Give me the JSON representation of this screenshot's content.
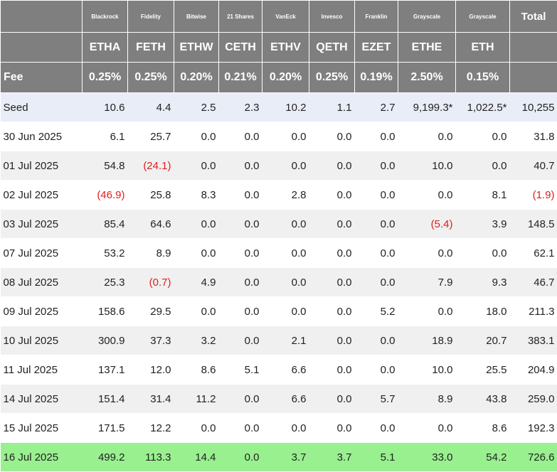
{
  "colors": {
    "header_bg": "#7f7f7f",
    "header_text": "#ffffff",
    "seed_row_bg": "#e9edf7",
    "shaded_row_bg": "#f0f0f0",
    "latest_row_bg": "#99f08f",
    "negative_text": "#e11d1d"
  },
  "header": {
    "issuers": [
      "Blackrock",
      "Fidelity",
      "Bitwise",
      "21 Shares",
      "VanEck",
      "Invesco",
      "Franklin",
      "Grayscale",
      "Grayscale"
    ],
    "total_label": "Total",
    "tickers": [
      "ETHA",
      "FETH",
      "ETHW",
      "CETH",
      "ETHV",
      "QETH",
      "EZET",
      "ETHE",
      "ETH"
    ],
    "fee_label": "Fee",
    "fees": [
      "0.25%",
      "0.25%",
      "0.20%",
      "0.21%",
      "0.20%",
      "0.25%",
      "0.19%",
      "2.50%",
      "0.15%"
    ]
  },
  "rows": [
    {
      "label": "Seed",
      "cells": [
        "10.6",
        "4.4",
        "2.5",
        "2.3",
        "10.2",
        "1.1",
        "2.7",
        "9,199.3*",
        "1,022.5*"
      ],
      "total": "10,255"
    },
    {
      "label": "30 Jun 2025",
      "cells": [
        "6.1",
        "25.7",
        "0.0",
        "0.0",
        "0.0",
        "0.0",
        "0.0",
        "0.0",
        "0.0"
      ],
      "total": "31.8"
    },
    {
      "label": "01 Jul 2025",
      "cells": [
        "54.8",
        "(24.1)",
        "0.0",
        "0.0",
        "0.0",
        "0.0",
        "0.0",
        "10.0",
        "0.0"
      ],
      "total": "40.7"
    },
    {
      "label": "02 Jul 2025",
      "cells": [
        "(46.9)",
        "25.8",
        "8.3",
        "0.0",
        "2.8",
        "0.0",
        "0.0",
        "0.0",
        "8.1"
      ],
      "total": "(1.9)"
    },
    {
      "label": "03 Jul 2025",
      "cells": [
        "85.4",
        "64.6",
        "0.0",
        "0.0",
        "0.0",
        "0.0",
        "0.0",
        "(5.4)",
        "3.9"
      ],
      "total": "148.5"
    },
    {
      "label": "07 Jul 2025",
      "cells": [
        "53.2",
        "8.9",
        "0.0",
        "0.0",
        "0.0",
        "0.0",
        "0.0",
        "0.0",
        "0.0"
      ],
      "total": "62.1"
    },
    {
      "label": "08 Jul 2025",
      "cells": [
        "25.3",
        "(0.7)",
        "4.9",
        "0.0",
        "0.0",
        "0.0",
        "0.0",
        "7.9",
        "9.3"
      ],
      "total": "46.7"
    },
    {
      "label": "09 Jul 2025",
      "cells": [
        "158.6",
        "29.5",
        "0.0",
        "0.0",
        "0.0",
        "0.0",
        "5.2",
        "0.0",
        "18.0"
      ],
      "total": "211.3"
    },
    {
      "label": "10 Jul 2025",
      "cells": [
        "300.9",
        "37.3",
        "3.2",
        "0.0",
        "2.1",
        "0.0",
        "0.0",
        "18.9",
        "20.7"
      ],
      "total": "383.1"
    },
    {
      "label": "11 Jul 2025",
      "cells": [
        "137.1",
        "12.0",
        "8.6",
        "5.1",
        "6.6",
        "0.0",
        "0.0",
        "10.0",
        "25.5"
      ],
      "total": "204.9"
    },
    {
      "label": "14 Jul 2025",
      "cells": [
        "151.4",
        "31.4",
        "11.2",
        "0.0",
        "6.6",
        "0.0",
        "5.7",
        "8.9",
        "43.8"
      ],
      "total": "259.0"
    },
    {
      "label": "15 Jul 2025",
      "cells": [
        "171.5",
        "12.2",
        "0.0",
        "0.0",
        "0.0",
        "0.0",
        "0.0",
        "0.0",
        "8.6"
      ],
      "total": "192.3"
    },
    {
      "label": "16 Jul 2025",
      "cells": [
        "499.2",
        "113.3",
        "14.4",
        "0.0",
        "3.7",
        "3.7",
        "5.1",
        "33.0",
        "54.2"
      ],
      "total": "726.6"
    }
  ]
}
